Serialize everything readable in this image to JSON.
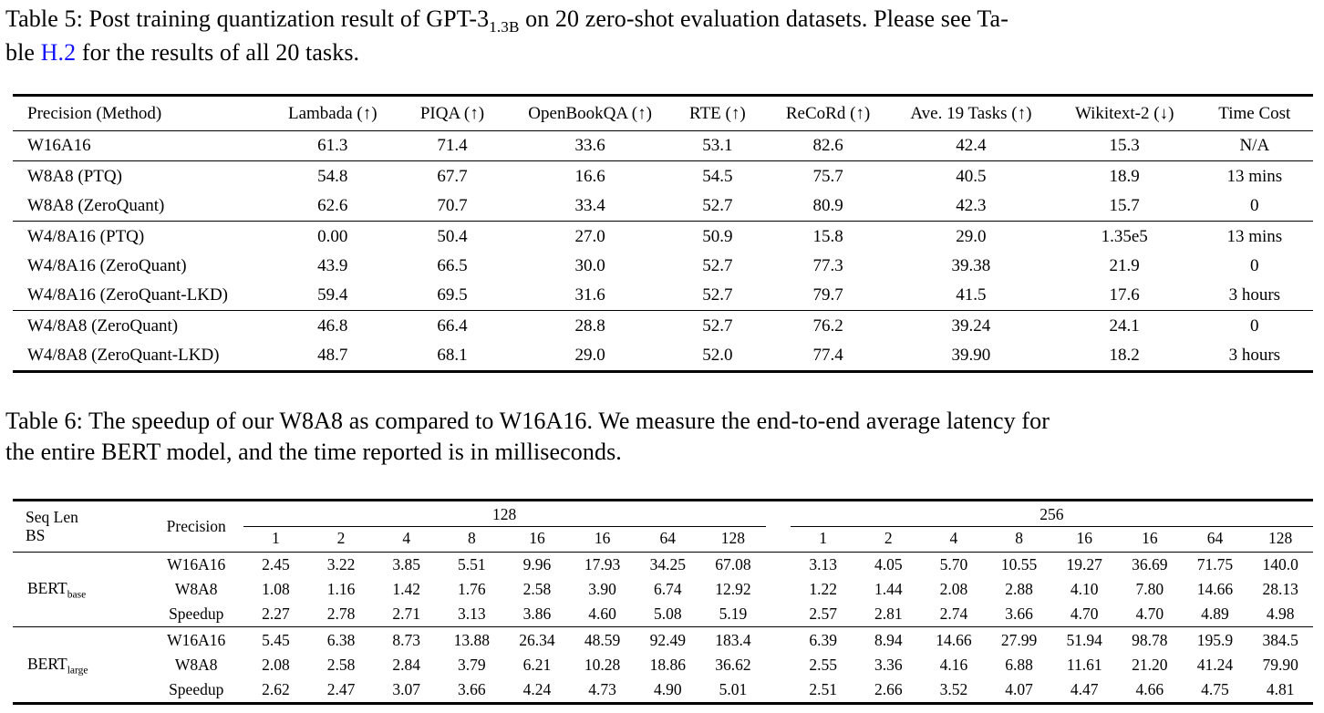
{
  "page": {
    "background": "#ffffff",
    "text_color": "#000000",
    "link_color": "#1414ff"
  },
  "table5": {
    "caption": {
      "line1_part1": "Table 5: Post training quantization result of GPT-3",
      "line1_subscript": "1.3B",
      "line1_part2": " on 20 zero-shot evaluation datasets. Please see Ta-",
      "line2_part1": "ble ",
      "line2_link": "H.2",
      "line2_part2": " for the results of all 20 tasks."
    },
    "headers": [
      "Precision (Method)",
      "Lambada (↑)",
      "PIQA (↑)",
      "OpenBookQA (↑)",
      "RTE (↑)",
      "ReCoRd (↑)",
      "Ave. 19 Tasks (↑)",
      "Wikitext-2 (↓)",
      "Time Cost"
    ],
    "groups": [
      [
        [
          "W16A16",
          "61.3",
          "71.4",
          "33.6",
          "53.1",
          "82.6",
          "42.4",
          "15.3",
          "N/A"
        ]
      ],
      [
        [
          "W8A8 (PTQ)",
          "54.8",
          "67.7",
          "16.6",
          "54.5",
          "75.7",
          "40.5",
          "18.9",
          "13 mins"
        ],
        [
          "W8A8 (ZeroQuant)",
          "62.6",
          "70.7",
          "33.4",
          "52.7",
          "80.9",
          "42.3",
          "15.7",
          "0"
        ]
      ],
      [
        [
          "W4/8A16 (PTQ)",
          "0.00",
          "50.4",
          "27.0",
          "50.9",
          "15.8",
          "29.0",
          "1.35e5",
          "13 mins"
        ],
        [
          "W4/8A16 (ZeroQuant)",
          "43.9",
          "66.5",
          "30.0",
          "52.7",
          "77.3",
          "39.38",
          "21.9",
          "0"
        ],
        [
          "W4/8A16 (ZeroQuant-LKD)",
          "59.4",
          "69.5",
          "31.6",
          "52.7",
          "79.7",
          "41.5",
          "17.6",
          "3 hours"
        ]
      ],
      [
        [
          "W4/8A8 (ZeroQuant)",
          "46.8",
          "66.4",
          "28.8",
          "52.7",
          "76.2",
          "39.24",
          "24.1",
          "0"
        ],
        [
          "W4/8A8 (ZeroQuant-LKD)",
          "48.7",
          "68.1",
          "29.0",
          "52.0",
          "77.4",
          "39.90",
          "18.2",
          "3 hours"
        ]
      ]
    ]
  },
  "table6": {
    "caption_line1": "Table 6: The speedup of our W8A8 as compared to W16A16. We measure the end-to-end average latency for",
    "caption_line2": "the entire BERT model, and the time reported is in milliseconds.",
    "corner_line1": "Seq Len",
    "corner_line2": "BS",
    "precision_header": "Precision",
    "group_headers": [
      "128",
      "256"
    ],
    "batch_sizes": [
      "1",
      "2",
      "4",
      "8",
      "16",
      "16",
      "64",
      "128"
    ],
    "models": [
      {
        "label": "BERT",
        "label_subscript": "base",
        "rows": [
          {
            "precision": "W16A16",
            "seq128": [
              "2.45",
              "3.22",
              "3.85",
              "5.51",
              "9.96",
              "17.93",
              "34.25",
              "67.08"
            ],
            "seq256": [
              "3.13",
              "4.05",
              "5.70",
              "10.55",
              "19.27",
              "36.69",
              "71.75",
              "140.0"
            ]
          },
          {
            "precision": "W8A8",
            "seq128": [
              "1.08",
              "1.16",
              "1.42",
              "1.76",
              "2.58",
              "3.90",
              "6.74",
              "12.92"
            ],
            "seq256": [
              "1.22",
              "1.44",
              "2.08",
              "2.88",
              "4.10",
              "7.80",
              "14.66",
              "28.13"
            ]
          },
          {
            "precision": "Speedup",
            "seq128": [
              "2.27",
              "2.78",
              "2.71",
              "3.13",
              "3.86",
              "4.60",
              "5.08",
              "5.19"
            ],
            "seq256": [
              "2.57",
              "2.81",
              "2.74",
              "3.66",
              "4.70",
              "4.70",
              "4.89",
              "4.98"
            ]
          }
        ]
      },
      {
        "label": "BERT",
        "label_subscript": "large",
        "rows": [
          {
            "precision": "W16A16",
            "seq128": [
              "5.45",
              "6.38",
              "8.73",
              "13.88",
              "26.34",
              "48.59",
              "92.49",
              "183.4"
            ],
            "seq256": [
              "6.39",
              "8.94",
              "14.66",
              "27.99",
              "51.94",
              "98.78",
              "195.9",
              "384.5"
            ]
          },
          {
            "precision": "W8A8",
            "seq128": [
              "2.08",
              "2.58",
              "2.84",
              "3.79",
              "6.21",
              "10.28",
              "18.86",
              "36.62"
            ],
            "seq256": [
              "2.55",
              "3.36",
              "4.16",
              "6.88",
              "11.61",
              "21.20",
              "41.24",
              "79.90"
            ]
          },
          {
            "precision": "Speedup",
            "seq128": [
              "2.62",
              "2.47",
              "3.07",
              "3.66",
              "4.24",
              "4.73",
              "4.90",
              "5.01"
            ],
            "seq256": [
              "2.51",
              "2.66",
              "3.52",
              "4.07",
              "4.47",
              "4.66",
              "4.75",
              "4.81"
            ]
          }
        ]
      }
    ]
  }
}
